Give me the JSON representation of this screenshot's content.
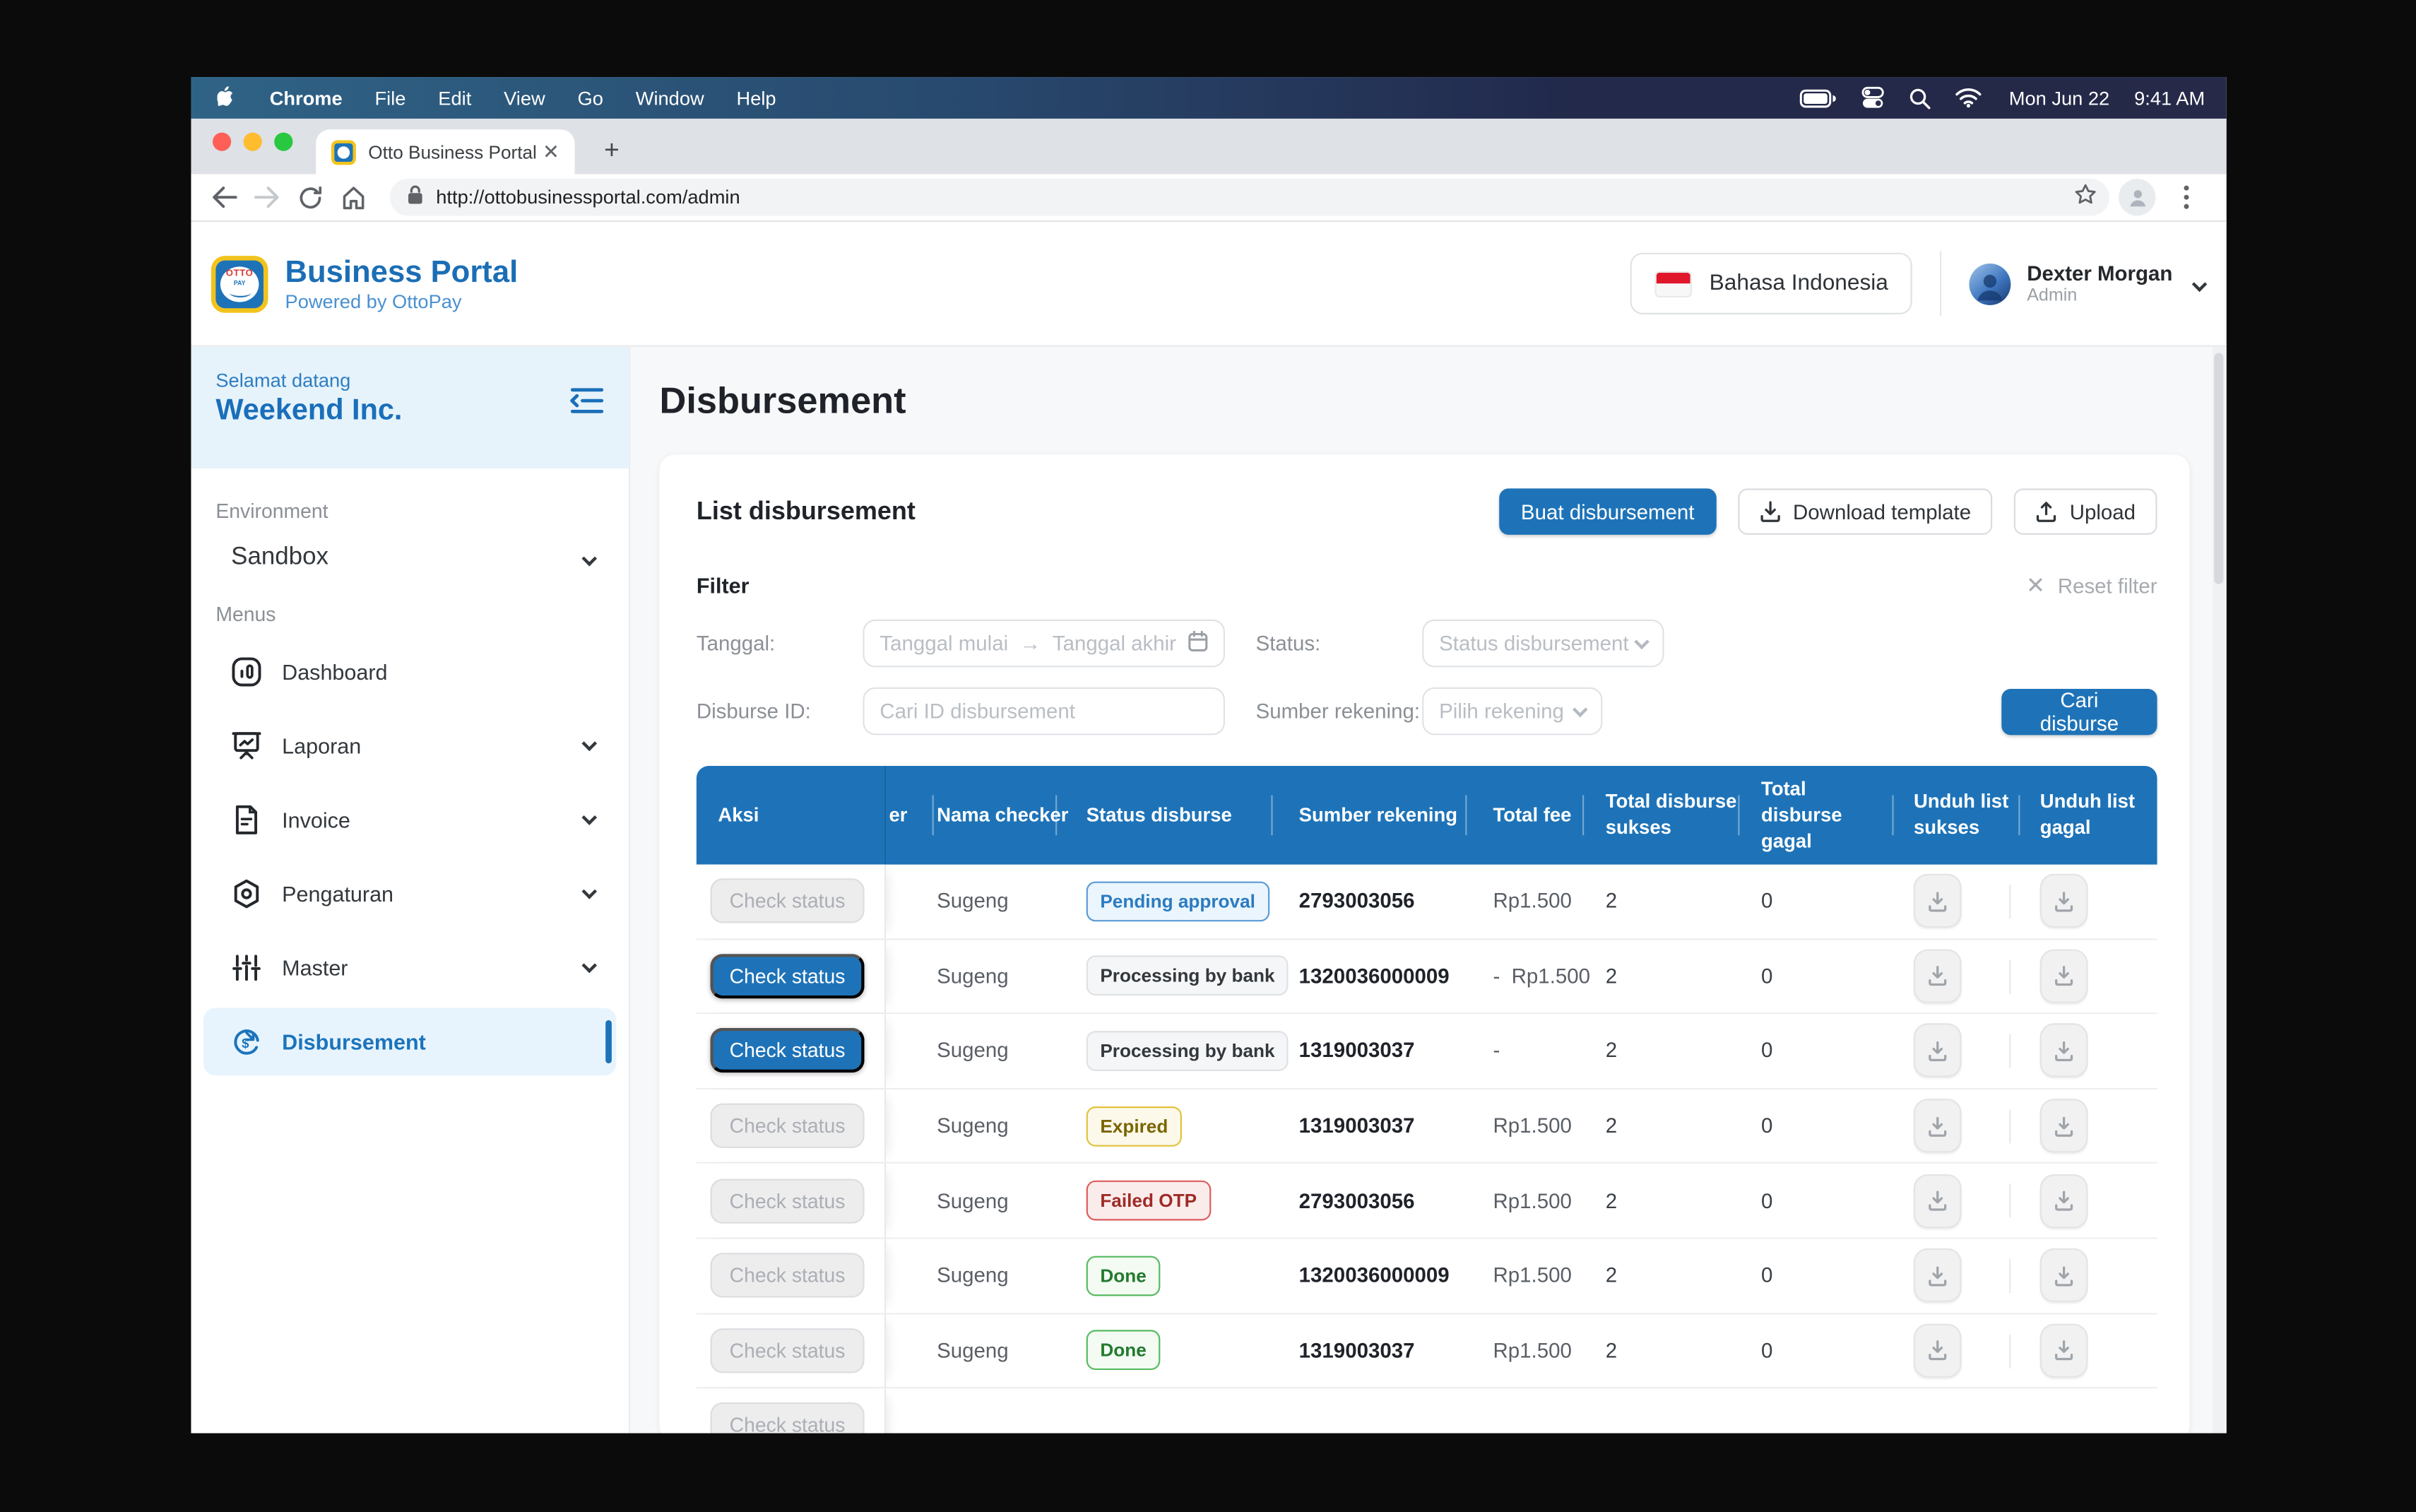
{
  "colors": {
    "primary": "#1E73B8",
    "header_blue": "#1E73B8",
    "active_item_bg": "#E8F4FD",
    "welcome_bg": "#E7F3FB",
    "pending_blue": "#2B7BC0",
    "expired_yellow": "#E2C23B",
    "failed_red": "#DD5C5C",
    "done_green": "#57BB61",
    "flag_red": "#E0162B"
  },
  "menubar": {
    "items": [
      "Chrome",
      "File",
      "Edit",
      "View",
      "Go",
      "Window",
      "Help"
    ],
    "icons": [
      "battery-icon",
      "control-center-icon",
      "spotlight-icon",
      "wifi-icon"
    ],
    "date": "Mon Jun 22",
    "time": "9:41 AM"
  },
  "browser": {
    "tab_title": "Otto Business Portal",
    "close_glyph": "✕",
    "new_tab_glyph": "+",
    "url": "http://ottobusinessportal.com/admin"
  },
  "header": {
    "brand_title": "Business Portal",
    "brand_subtitle": "Powered by OttoPay",
    "language": "Bahasa Indonesia",
    "user_name": "Dexter Morgan",
    "user_role": "Admin"
  },
  "sidebar": {
    "welcome_label": "Selamat datang",
    "company": "Weekend Inc.",
    "environment_label": "Environment",
    "environment_value": "Sandbox",
    "menus_label": "Menus",
    "items": [
      {
        "label": "Dashboard",
        "icon": "dashboard-icon",
        "chevron": false,
        "active": false
      },
      {
        "label": "Laporan",
        "icon": "report-icon",
        "chevron": true,
        "active": false
      },
      {
        "label": "Invoice",
        "icon": "invoice-icon",
        "chevron": true,
        "active": false
      },
      {
        "label": "Pengaturan",
        "icon": "settings-icon",
        "chevron": true,
        "active": false
      },
      {
        "label": "Master",
        "icon": "sliders-icon",
        "chevron": true,
        "active": false
      },
      {
        "label": "Disbursement",
        "icon": "disbursement-icon",
        "chevron": false,
        "active": true
      }
    ]
  },
  "main": {
    "page_title": "Disbursement",
    "card_title": "List disbursement",
    "buttons": {
      "create": "Buat disbursement",
      "download_template": "Download template",
      "upload": "Upload"
    },
    "filter": {
      "title": "Filter",
      "reset": "Reset filter",
      "tanggal_label": "Tanggal:",
      "tanggal_start_placeholder": "Tanggal mulai",
      "tanggal_arrow": "→",
      "tanggal_end_placeholder": "Tanggal akhir",
      "status_label": "Status:",
      "status_placeholder": "Status disbursement",
      "disburse_id_label": "Disburse ID:",
      "disburse_id_placeholder": "Cari ID disbursement",
      "rekening_label": "Sumber rekening:",
      "rekening_placeholder": "Pilih rekening",
      "search_button": "Cari disburse"
    },
    "table": {
      "columns": [
        "Aksi",
        "er",
        "Nama checker",
        "Status disburse",
        "Sumber rekening",
        "Total fee",
        "Total disburse sukses",
        "Total disburse gagal",
        "Unduh list sukses",
        "Unduh list gagal"
      ],
      "check_status_label": "Check status",
      "rows": [
        {
          "action": "Check status",
          "enabled": false,
          "checker": "Sugeng",
          "status": "Pending approval",
          "status_type": "pending",
          "rekening": "2793003056",
          "fee": "Rp1.500",
          "sukses": "2",
          "gagal": "0",
          "partial": false
        },
        {
          "action": "Check status",
          "enabled": true,
          "checker": "Sugeng",
          "status": "Processing by bank",
          "status_type": "processing",
          "rekening": "1320036000009",
          "fee": "-  Rp1.500",
          "sukses": "2",
          "gagal": "0",
          "partial": false
        },
        {
          "action": "Check status",
          "enabled": true,
          "checker": "Sugeng",
          "status": "Processing by bank",
          "status_type": "processing",
          "rekening": "1319003037",
          "fee": "-",
          "sukses": "2",
          "gagal": "0",
          "partial": false
        },
        {
          "action": "Check status",
          "enabled": false,
          "checker": "Sugeng",
          "status": "Expired",
          "status_type": "expired",
          "rekening": "1319003037",
          "fee": "Rp1.500",
          "sukses": "2",
          "gagal": "0",
          "partial": false
        },
        {
          "action": "Check status",
          "enabled": false,
          "checker": "Sugeng",
          "status": "Failed OTP",
          "status_type": "failed",
          "rekening": "2793003056",
          "fee": "Rp1.500",
          "sukses": "2",
          "gagal": "0",
          "partial": false
        },
        {
          "action": "Check status",
          "enabled": false,
          "checker": "Sugeng",
          "status": "Done",
          "status_type": "done",
          "rekening": "1320036000009",
          "fee": "Rp1.500",
          "sukses": "2",
          "gagal": "0",
          "partial": false
        },
        {
          "action": "Check status",
          "enabled": false,
          "checker": "Sugeng",
          "status": "Done",
          "status_type": "done",
          "rekening": "1319003037",
          "fee": "Rp1.500",
          "sukses": "2",
          "gagal": "0",
          "partial": false
        },
        {
          "action": "Check status",
          "enabled": false,
          "checker": "",
          "status": "",
          "status_type": "none",
          "rekening": "",
          "fee": "",
          "sukses": "",
          "gagal": "",
          "partial": true
        }
      ]
    }
  }
}
